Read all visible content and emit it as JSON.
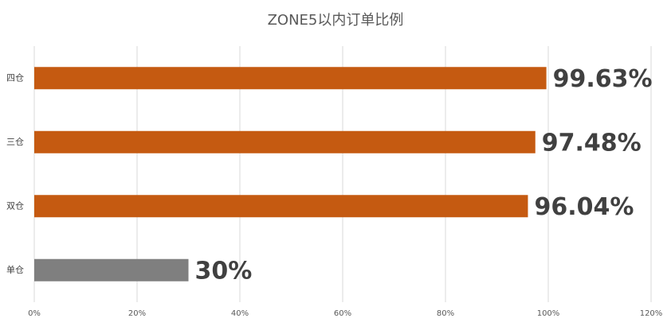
{
  "chart_data": {
    "type": "bar",
    "orientation": "horizontal",
    "title": "ZONE5以内订单比例",
    "categories": [
      "四仓",
      "三仓",
      "双仓",
      "单仓"
    ],
    "values": [
      99.63,
      97.48,
      96.04,
      30
    ],
    "value_labels": [
      "99.63%",
      "97.48%",
      "96.04%",
      "30%"
    ],
    "colors": [
      "#c55a11",
      "#c55a11",
      "#c55a11",
      "#7f7f7f"
    ],
    "xlim": [
      0,
      120
    ],
    "xticks": [
      {
        "value": 0,
        "label": "0%"
      },
      {
        "value": 20,
        "label": "20%"
      },
      {
        "value": 40,
        "label": "40%"
      },
      {
        "value": 60,
        "label": "60%"
      },
      {
        "value": 80,
        "label": "80%"
      },
      {
        "value": 100,
        "label": "100%"
      },
      {
        "value": 120,
        "label": "120%"
      }
    ],
    "grid": true
  }
}
